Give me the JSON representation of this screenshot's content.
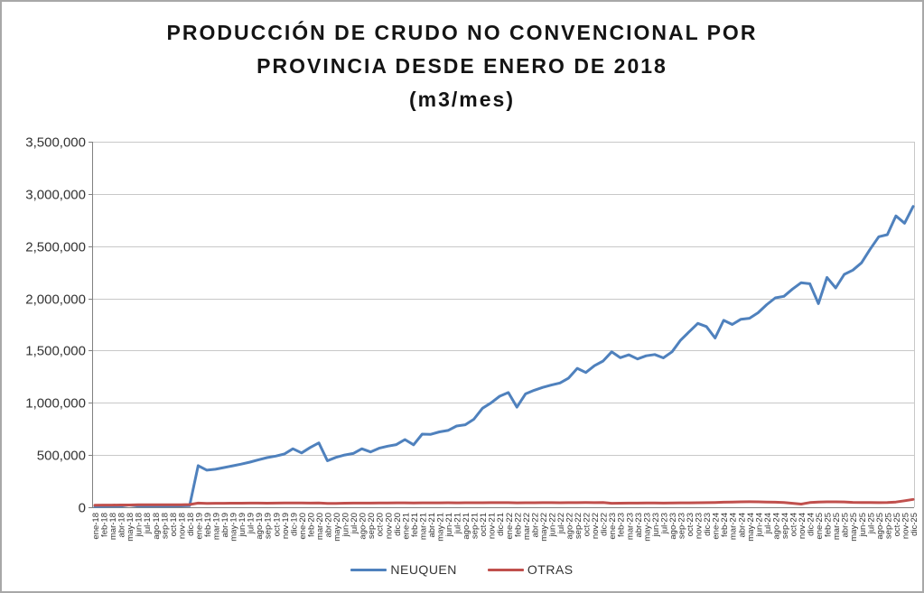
{
  "title_lines": [
    "PRODUCCIÓN DE CRUDO NO CONVENCIONAL POR",
    "PROVINCIA DESDE ENERO DE 2018",
    "(m3/mes)"
  ],
  "chart_data": {
    "type": "line",
    "title": "PRODUCCIÓN DE CRUDO NO CONVENCIONAL POR PROVINCIA DESDE ENERO DE 2018 (m3/mes)",
    "xlabel": "",
    "ylabel": "",
    "ylim": [
      0,
      3500000
    ],
    "ytick_step": 500000,
    "grid": true,
    "legend_position": "bottom",
    "y_tick_labels": [
      "0",
      "500,000",
      "1,000,000",
      "1,500,000",
      "2,000,000",
      "2,500,000",
      "3,000,000",
      "3,500,000"
    ],
    "x_labels": [
      "ene-18",
      "feb-18",
      "mar-18",
      "abr-18",
      "may-18",
      "jun-18",
      "jul-18",
      "ago-18",
      "sep-18",
      "oct-18",
      "nov-18",
      "dic-18",
      "ene-19",
      "feb-19",
      "mar-19",
      "abr-19",
      "may-19",
      "jun-19",
      "jul-19",
      "ago-19",
      "sep-19",
      "oct-19",
      "nov-19",
      "dic-19",
      "ene-20",
      "feb-20",
      "mar-20",
      "abr-20",
      "may-20",
      "jun-20",
      "jul-20",
      "ago-20",
      "sep-20",
      "oct-20",
      "nov-20",
      "dic-20",
      "ene-21",
      "feb-21",
      "mar-21",
      "abr-21",
      "may-21",
      "jun-21",
      "jul-21",
      "ago-21",
      "sep-21",
      "oct-21",
      "nov-21",
      "dic-21",
      "ene-22",
      "feb-22",
      "mar-22",
      "abr-22",
      "may-22",
      "jun-22",
      "jul-22",
      "ago-22",
      "sep-22",
      "oct-22",
      "nov-22",
      "dic-22",
      "ene-23",
      "feb-23",
      "mar-23",
      "abr-23",
      "may-23",
      "jun-23",
      "jul-23",
      "ago-23",
      "sep-23",
      "oct-23",
      "nov-23",
      "dic-23",
      "ene-24",
      "feb-24",
      "mar-24",
      "abr-24",
      "may-24",
      "jun-24",
      "jul-24",
      "ago-24",
      "sep-24",
      "oct-24",
      "nov-24",
      "dic-24",
      "ene-25",
      "feb-25",
      "mar-25",
      "abr-25",
      "may-25",
      "jun-25",
      "jul-25",
      "ago-25",
      "sep-25",
      "oct-25",
      "nov-25",
      "dic-25"
    ],
    "series": [
      {
        "name": "NEUQUEN",
        "color": "#4F81BD",
        "values": [
          8000,
          9000,
          10000,
          11000,
          22000,
          12000,
          11000,
          12000,
          11000,
          12000,
          13000,
          15000,
          398000,
          355000,
          364000,
          380000,
          397000,
          413000,
          432000,
          455000,
          475000,
          490000,
          510000,
          560000,
          520000,
          572000,
          616000,
          445000,
          478000,
          500000,
          515000,
          560000,
          530000,
          565000,
          585000,
          600000,
          648000,
          598000,
          700000,
          698000,
          722000,
          735000,
          778000,
          790000,
          843000,
          948000,
          1000000,
          1063000,
          1098000,
          958000,
          1085000,
          1120000,
          1148000,
          1170000,
          1190000,
          1237000,
          1330000,
          1290000,
          1355000,
          1400000,
          1488000,
          1432000,
          1460000,
          1420000,
          1450000,
          1462000,
          1430000,
          1488000,
          1600000,
          1680000,
          1760000,
          1730000,
          1620000,
          1790000,
          1750000,
          1800000,
          1810000,
          1862000,
          1940000,
          2005000,
          2020000,
          2090000,
          2150000,
          2140000,
          1950000,
          2200000,
          2100000,
          2230000,
          2270000,
          2340000,
          2470000,
          2590000,
          2610000,
          2790000,
          2720000,
          2880000
        ]
      },
      {
        "name": "OTRAS",
        "color": "#C0504D",
        "values": [
          20000,
          21000,
          21000,
          22000,
          22000,
          23000,
          23000,
          23000,
          24000,
          24000,
          24000,
          26000,
          40000,
          37000,
          38000,
          38000,
          39000,
          39000,
          40000,
          40000,
          39000,
          40000,
          41000,
          41000,
          41000,
          40000,
          41000,
          36000,
          37000,
          39000,
          40000,
          40000,
          40000,
          41000,
          41000,
          42000,
          42000,
          41000,
          42000,
          42000,
          42000,
          43000,
          42000,
          43000,
          43000,
          43000,
          44000,
          44000,
          44000,
          42000,
          43000,
          43000,
          44000,
          44000,
          43000,
          44000,
          44000,
          45000,
          44000,
          45000,
          38000,
          39000,
          40000,
          40000,
          41000,
          41000,
          40000,
          41000,
          42000,
          42000,
          43000,
          44000,
          46000,
          48000,
          50000,
          52000,
          53000,
          52000,
          50000,
          48000,
          45000,
          38000,
          30000,
          45000,
          50000,
          52000,
          52000,
          51000,
          47000,
          45000,
          45000,
          44000,
          46000,
          50000,
          62000,
          75000
        ]
      }
    ]
  },
  "legend": {
    "items": [
      {
        "label": "NEUQUEN",
        "color": "#4F81BD"
      },
      {
        "label": "OTRAS",
        "color": "#C0504D"
      }
    ]
  },
  "colors": {
    "background": "#FFFFFF",
    "frame_border": "#A8A8A8",
    "gridline": "#C8C8C8",
    "axis_line": "#808080",
    "axis_text": "#333333",
    "title_text": "#141414"
  }
}
